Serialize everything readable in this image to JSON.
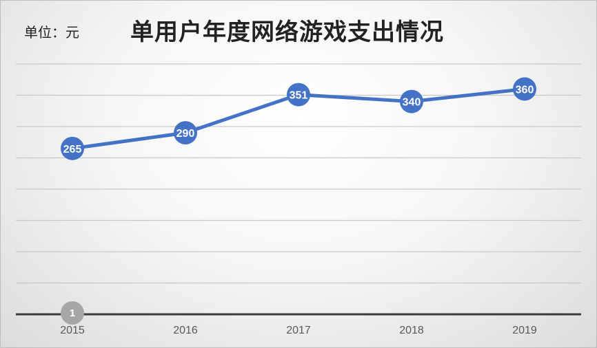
{
  "unit_label": "单位：元",
  "badge_label": "1",
  "chart_data": {
    "type": "line",
    "title": "单用户年度网络游戏支出情况",
    "xlabel": "",
    "ylabel": "",
    "categories": [
      "2015",
      "2016",
      "2017",
      "2018",
      "2019"
    ],
    "series": [
      {
        "values": [
          265,
          290,
          351,
          340,
          360
        ],
        "color": "#4472c4"
      }
    ],
    "ylim": [
      0,
      400
    ],
    "grid": true,
    "legend": "none"
  }
}
